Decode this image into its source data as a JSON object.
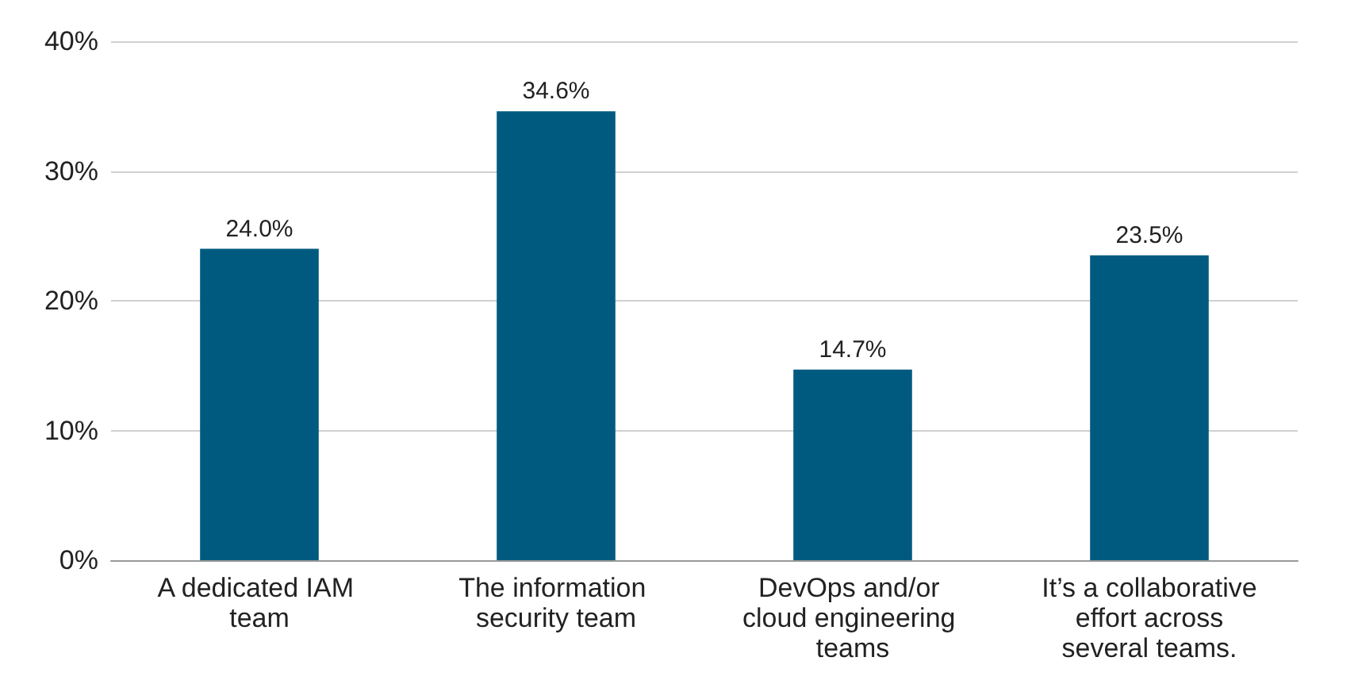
{
  "chart_data": {
    "type": "bar",
    "categories": [
      "A dedicated IAM team",
      "The information security team",
      "DevOps and/or cloud engineering teams",
      "It’s a collaborative effort across several teams."
    ],
    "values": [
      24.0,
      34.6,
      14.7,
      23.5
    ],
    "value_labels": [
      "24.0%",
      "34.6%",
      "14.7%",
      "23.5%"
    ],
    "color": "#005a80",
    "ylim": [
      0,
      40
    ],
    "yticks": [
      {
        "value": 0,
        "label": "0%"
      },
      {
        "value": 10,
        "label": "10%"
      },
      {
        "value": 20,
        "label": "20%"
      },
      {
        "value": 30,
        "label": "30%"
      },
      {
        "value": 40,
        "label": "40%"
      }
    ],
    "grid": "y"
  }
}
